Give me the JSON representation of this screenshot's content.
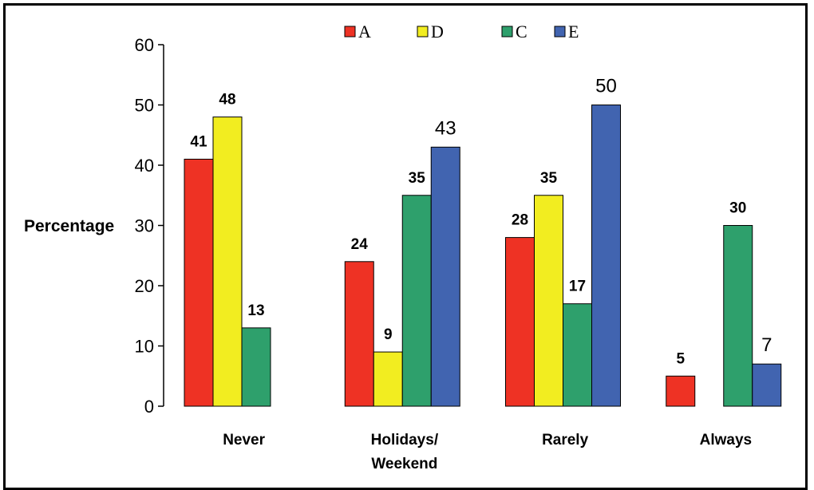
{
  "chart_data": {
    "type": "bar",
    "ylabel": "Percentage",
    "ylim": [
      0,
      60
    ],
    "yticks": [
      "0",
      "10",
      "20",
      "30",
      "40",
      "50",
      "60"
    ],
    "categories": [
      "Never",
      "Holidays/\nWeekend",
      "Rarely",
      "Always"
    ],
    "legend_position": "top-center",
    "grid": false,
    "series": [
      {
        "name": "A",
        "color": "#ee3224",
        "values": [
          41,
          24,
          28,
          5
        ],
        "label_style": "bold"
      },
      {
        "name": "D",
        "color": "#f2ed20",
        "values": [
          48,
          9,
          35,
          null
        ],
        "label_style": "bold"
      },
      {
        "name": "C",
        "color": "#2ea06c",
        "values": [
          13,
          35,
          17,
          30
        ],
        "label_style": "bold"
      },
      {
        "name": "E",
        "color": "#4164b0",
        "values": [
          null,
          43,
          50,
          7
        ],
        "label_style": "plain"
      }
    ]
  }
}
